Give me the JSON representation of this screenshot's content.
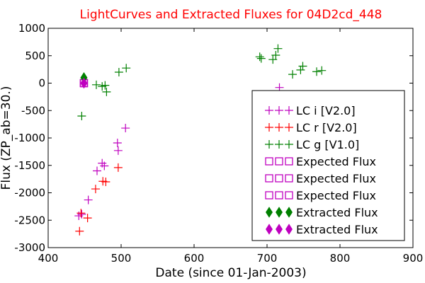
{
  "chart_data": {
    "type": "scatter",
    "title": "LightCurves and Extracted Fluxes for 04D2cd_448",
    "xlabel": "Date (since 01-Jan-2003)",
    "ylabel": "Flux (ZP_ab=30.)",
    "xlim": [
      400,
      900
    ],
    "ylim": [
      -3000,
      1000
    ],
    "xticks": [
      "400",
      "500",
      "600",
      "700",
      "800",
      "900"
    ],
    "yticks": [
      "1000",
      "500",
      "0",
      "-500",
      "-1000",
      "-1500",
      "-2000",
      "-2500",
      "-3000"
    ],
    "legend_position": "lower-right",
    "colors": {
      "title": "#ff0000",
      "i": "#bf00bf",
      "r": "#ff0000",
      "g": "#008000"
    },
    "series": [
      {
        "name": "LC i [V2.0]",
        "marker": "plus",
        "color": "#bf00bf",
        "points": [
          [
            442,
            -2420
          ],
          [
            446,
            -2390
          ],
          [
            455,
            -2130
          ],
          [
            467,
            -1600
          ],
          [
            474,
            -1460
          ],
          [
            477,
            -1510
          ],
          [
            495,
            -1090
          ],
          [
            496,
            -1230
          ],
          [
            506,
            -820
          ],
          [
            717,
            -80
          ]
        ]
      },
      {
        "name": "LC r [V2.0]",
        "marker": "plus",
        "color": "#ff0000",
        "points": [
          [
            443,
            -2700
          ],
          [
            445,
            -2370
          ],
          [
            454,
            -2460
          ],
          [
            465,
            -1930
          ],
          [
            475,
            -1790
          ],
          [
            479,
            -1800
          ],
          [
            496,
            -1540
          ]
        ]
      },
      {
        "name": "LC g [V1.0]",
        "marker": "plus",
        "color": "#008000",
        "points": [
          [
            446,
            -600
          ],
          [
            466,
            -30
          ],
          [
            474,
            -60
          ],
          [
            478,
            -40
          ],
          [
            480,
            -160
          ],
          [
            497,
            200
          ],
          [
            507,
            275
          ],
          [
            690,
            480
          ],
          [
            692,
            450
          ],
          [
            708,
            430
          ],
          [
            712,
            510
          ],
          [
            715,
            630
          ],
          [
            735,
            160
          ],
          [
            746,
            240
          ],
          [
            749,
            310
          ],
          [
            768,
            210
          ],
          [
            775,
            230
          ]
        ]
      },
      {
        "name": "Expected Flux",
        "marker": "square",
        "color": "#bf00bf",
        "points": [
          [
            449,
            0
          ]
        ]
      },
      {
        "name": "Expected Flux",
        "marker": "square",
        "color": "#bf00bf",
        "points": [
          [
            449,
            0
          ]
        ]
      },
      {
        "name": "Expected Flux",
        "marker": "square",
        "color": "#bf00bf",
        "points": [
          [
            449,
            0
          ]
        ]
      },
      {
        "name": "Extracted Flux",
        "marker": "diamond",
        "color": "#008000",
        "points": [
          [
            449,
            100
          ]
        ]
      },
      {
        "name": "Extracted Flux",
        "marker": "diamond",
        "color": "#bf00bf",
        "points": [
          [
            449,
            0
          ]
        ]
      }
    ]
  }
}
